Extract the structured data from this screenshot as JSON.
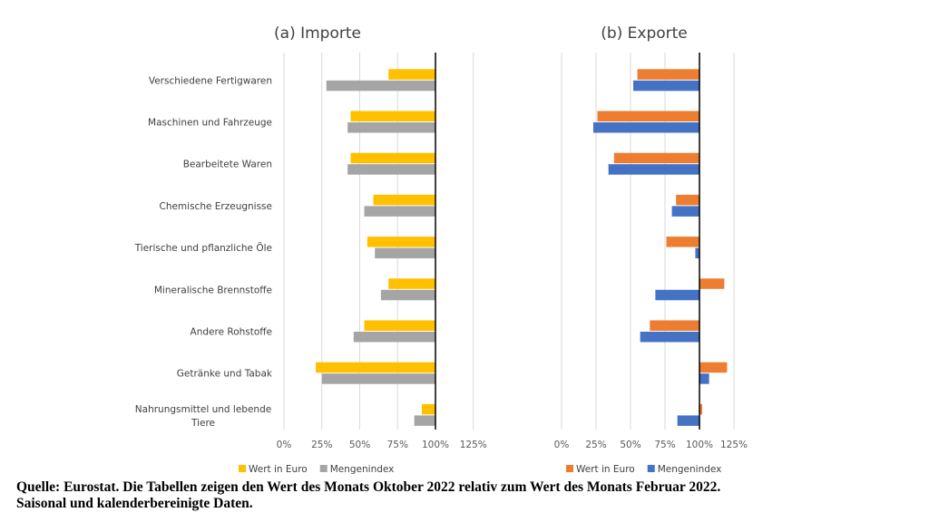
{
  "chart_data": [
    {
      "type": "bar",
      "orientation": "horizontal",
      "title": "(a) Importe",
      "categories": [
        "Verschiedene Fertigwaren",
        "Maschinen und Fahrzeuge",
        "Bearbeitete Waren",
        "Chemische Erzeugnisse",
        "Tierische und pflanzliche Öle",
        "Mineralische Brennstoffe",
        "Andere Rohstoffe",
        "Getränke und Tabak",
        "Nahrungsmittel und lebende Tiere"
      ],
      "series": [
        {
          "name": "Wert in Euro",
          "color": "#FFC000",
          "values": [
            0.31,
            0.56,
            0.56,
            0.41,
            0.45,
            0.31,
            0.47,
            0.79,
            0.09
          ]
        },
        {
          "name": "Mengenindex",
          "color": "#A5A5A5",
          "values": [
            0.72,
            0.58,
            0.58,
            0.47,
            0.4,
            0.36,
            0.54,
            0.75,
            0.14
          ]
        }
      ],
      "value_axis": "bars extend from 100% toward lower values",
      "xticks": [
        "0%",
        "25%",
        "50%",
        "75%",
        "100%",
        "125%"
      ],
      "xlim": [
        0,
        1.25
      ],
      "grid": true,
      "legend": "bottom"
    },
    {
      "type": "bar",
      "orientation": "horizontal",
      "title": "(b) Exporte",
      "categories": [
        "Verschiedene Fertigwaren",
        "Maschinen und Fahrzeuge",
        "Bearbeitete Waren",
        "Chemische Erzeugnisse",
        "Tierische und pflanzliche Öle",
        "Mineralische Brennstoffe",
        "Andere Rohstoffe",
        "Getränke und Tabak",
        "Nahrungsmittel und lebende Tiere"
      ],
      "series": [
        {
          "name": "Wert in Euro",
          "color": "#ED7D31",
          "values": [
            0.45,
            0.74,
            0.62,
            0.17,
            0.24,
            0.18,
            0.36,
            0.2,
            0.02
          ]
        },
        {
          "name": "Mengenindex",
          "color": "#4472C4",
          "values": [
            0.48,
            0.77,
            0.66,
            0.2,
            0.03,
            0.32,
            0.43,
            0.07,
            0.16
          ]
        }
      ],
      "value_axis": "bars extend from 100% in the direction of the value",
      "signed_values": [
        [
          -0.45,
          -0.48
        ],
        [
          -0.74,
          -0.77
        ],
        [
          -0.62,
          -0.66
        ],
        [
          -0.17,
          -0.2
        ],
        [
          -0.24,
          -0.03
        ],
        [
          0.18,
          -0.32
        ],
        [
          -0.36,
          -0.43
        ],
        [
          0.2,
          0.07
        ],
        [
          0.02,
          -0.16
        ]
      ],
      "xticks": [
        "0%",
        "25%",
        "50%",
        "75%",
        "100%",
        "125%"
      ],
      "xlim": [
        0,
        1.25
      ],
      "grid": true,
      "legend": "bottom"
    }
  ],
  "footer": {
    "line1": "Quelle: Eurostat. Die Tabellen zeigen den Wert des Monats Oktober 2022 relativ zum Wert des Monats Februar 2022.",
    "line2": "Saisonal und kalenderbereinigte Daten."
  }
}
